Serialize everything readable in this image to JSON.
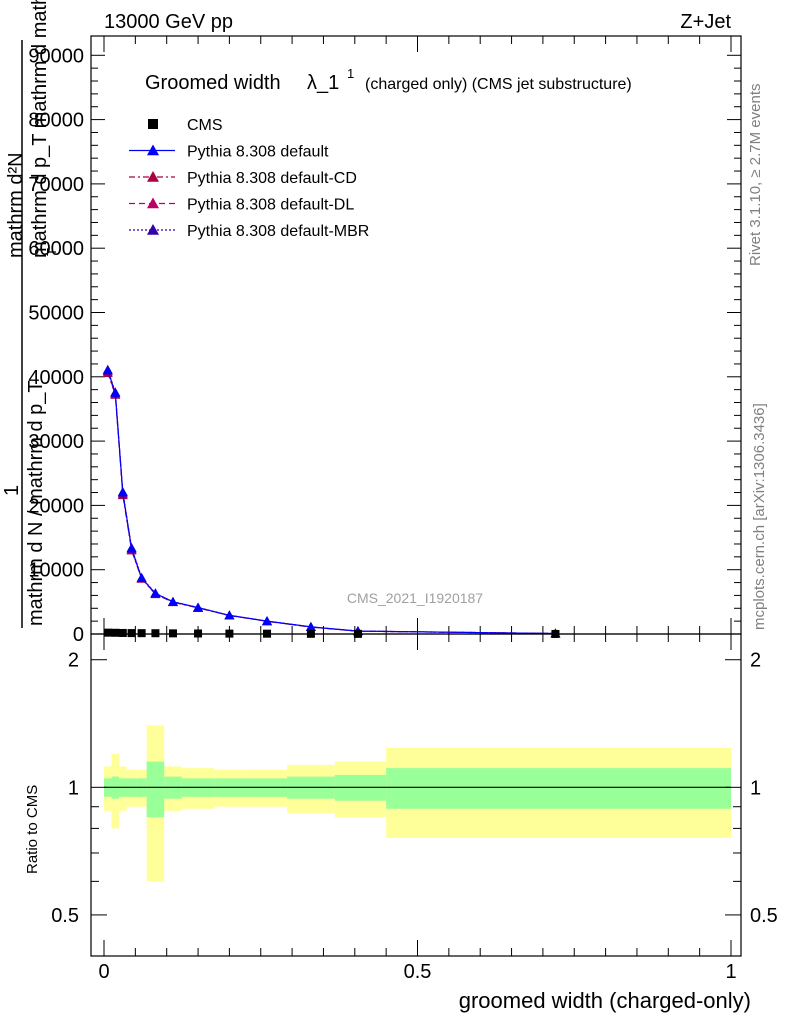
{
  "header": {
    "energy_label": "13000 GeV pp",
    "process_label": "Z+Jet",
    "rivet_label": "Rivet 3.1.10, ≥ 2.7M events",
    "mcplots_label": "mcplots.cern.ch [arXiv:1306.3436]",
    "analysis_label": "CMS_2021_I1920187"
  },
  "colors": {
    "cms": "#000000",
    "default": "#0000ff",
    "cd": "#aa0044",
    "dl": "#bb0066",
    "mbr": "#3300aa",
    "band_inner": "#99ff99",
    "band_outer": "#ffff99"
  },
  "chart_data": [
    {
      "type": "line",
      "title": "Groomed width",
      "title_symbol": "λ_1",
      "title_superscript": "1",
      "title_suffix": "(charged only) (CMS jet substructure)",
      "ylabel_lines": [
        "mathrm d²N",
        "mathrm d p_T mathrm d mathrm d lambda",
        "1",
        "mathrm d N / mathrm d p_T"
      ],
      "ylabel_subscript": "T",
      "xlim": [
        0,
        1
      ],
      "ylim": [
        0,
        90000
      ],
      "yticks": [
        0,
        10000,
        20000,
        30000,
        40000,
        50000,
        60000,
        70000,
        80000,
        90000
      ],
      "ytick_labels": [
        "0",
        "10000",
        "20000",
        "30000",
        "40000",
        "50000",
        "60000",
        "70000",
        "80000",
        "90000"
      ],
      "legend_position": "top-left",
      "x": [
        0.006,
        0.018,
        0.03,
        0.044,
        0.06,
        0.082,
        0.11,
        0.15,
        0.2,
        0.26,
        0.33,
        0.405,
        0.72
      ],
      "series": [
        {
          "name": "CMS",
          "marker": "square",
          "values": [
            210,
            190,
            160,
            140,
            130,
            120,
            100,
            80,
            60,
            50,
            30,
            20,
            8
          ]
        },
        {
          "name": "Pythia 8.308 default",
          "marker": "triangle",
          "line": "solid",
          "values": [
            41000,
            37500,
            22000,
            13300,
            8700,
            6300,
            5000,
            4100,
            2900,
            2000,
            1100,
            450,
            80
          ]
        },
        {
          "name": "Pythia 8.308 default-CD",
          "marker": "triangle",
          "line": "dashdot",
          "values": [
            40600,
            37200,
            21600,
            13000,
            8600,
            6200,
            4950,
            4050,
            2870,
            1980,
            1080,
            440,
            78
          ]
        },
        {
          "name": "Pythia 8.308 default-DL",
          "marker": "triangle",
          "line": "dashed",
          "values": [
            40800,
            37300,
            21800,
            13100,
            8650,
            6250,
            4980,
            4070,
            2880,
            1990,
            1090,
            445,
            79
          ]
        },
        {
          "name": "Pythia 8.308 default-MBR",
          "marker": "triangle",
          "line": "dotted",
          "values": [
            41100,
            37600,
            22100,
            13400,
            8750,
            6350,
            5020,
            4120,
            2910,
            2010,
            1110,
            455,
            81
          ]
        }
      ]
    },
    {
      "type": "area",
      "ylabel": "Ratio to CMS",
      "xlabel": "groomed width (charged-only)",
      "xlim": [
        0,
        1
      ],
      "ylim": [
        0.4,
        2.3
      ],
      "log_y": true,
      "yticks": [
        0.5,
        1,
        2
      ],
      "ytick_labels": [
        "0.5",
        "1",
        "2"
      ],
      "xticks": [
        0,
        0.5,
        1
      ],
      "xtick_labels": [
        "0",
        "0.5",
        "1"
      ],
      "bins": [
        0,
        0.012,
        0.024,
        0.036,
        0.052,
        0.068,
        0.096,
        0.124,
        0.176,
        0.224,
        0.292,
        0.368,
        0.45,
        1.0
      ],
      "inner_band_half_width": [
        0.05,
        0.06,
        0.05,
        0.05,
        0.05,
        0.15,
        0.06,
        0.05,
        0.05,
        0.05,
        0.06,
        0.07,
        0.11
      ],
      "outer_band_half_width": [
        0.12,
        0.2,
        0.12,
        0.1,
        0.1,
        0.4,
        0.12,
        0.11,
        0.1,
        0.1,
        0.13,
        0.15,
        0.24
      ],
      "reference_line": 1
    }
  ]
}
